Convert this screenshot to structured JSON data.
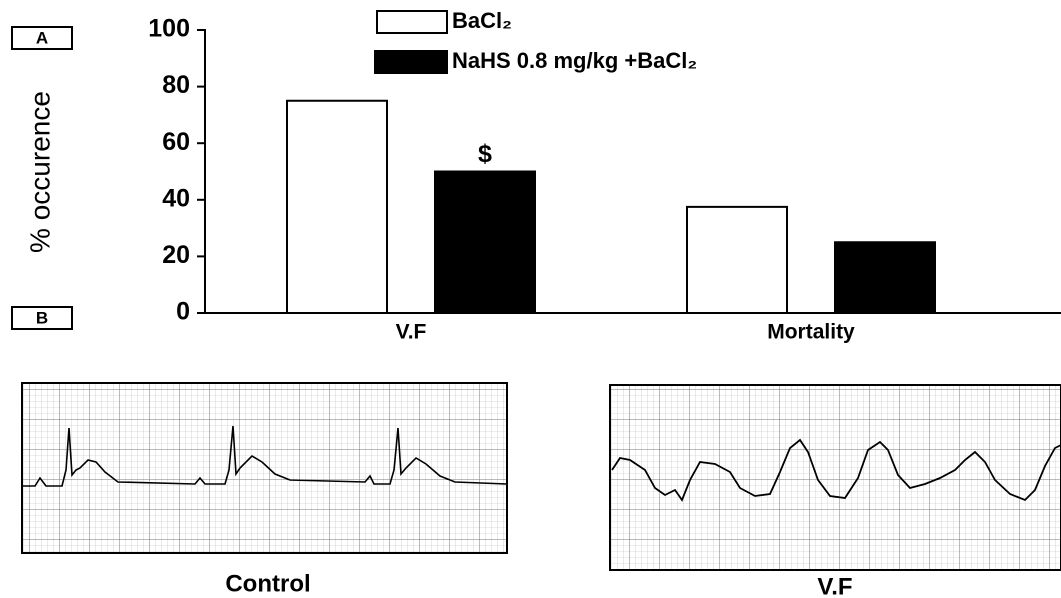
{
  "chart_data": {
    "type": "bar",
    "y_label": "% occurence",
    "categories": [
      "V.F",
      "Mortality"
    ],
    "series": [
      {
        "name": "BaCl₂",
        "color": "#ffffff",
        "values": [
          75,
          37.5
        ]
      },
      {
        "name": "NaHS 0.8 mg/kg +BaCl₂",
        "color": "#000000",
        "values": [
          50,
          25
        ]
      }
    ],
    "annotation": "$",
    "ylim": [
      0,
      100
    ],
    "yticks": [
      0,
      20,
      40,
      60,
      80,
      100
    ]
  },
  "panel_labels": [
    "A",
    "B"
  ],
  "ecg_labels": [
    "Control",
    "V.F"
  ]
}
